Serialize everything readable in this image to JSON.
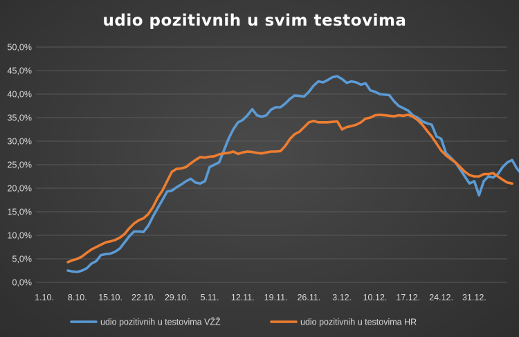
{
  "chart_data": {
    "type": "line",
    "title": "udio pozitivnih u svim testovima",
    "xlabel": "",
    "ylabel": "",
    "ylim": [
      0,
      50
    ],
    "y_ticks": [
      "0,0%",
      "5,0%",
      "10,0%",
      "15,0%",
      "20,0%",
      "25,0%",
      "30,0%",
      "35,0%",
      "40,0%",
      "45,0%",
      "50,0%"
    ],
    "x_ticks": [
      "1.10.",
      "8.10.",
      "15.10.",
      "22.10.",
      "29.10.",
      "5.11.",
      "12.11.",
      "19.11.",
      "26.11.",
      "3.12.",
      "10.12.",
      "17.12.",
      "24.12.",
      "31.12."
    ],
    "grid": true,
    "legend_position": "bottom",
    "series": [
      {
        "name": "udio pozitivnih u testovima VŽŽ",
        "color": "#5b9bd5",
        "x_start_day": 5,
        "values": [
          2.5,
          2.3,
          2.2,
          2.5,
          3.0,
          4.0,
          4.5,
          5.8,
          6.0,
          6.1,
          6.5,
          7.2,
          8.5,
          9.8,
          10.8,
          10.8,
          10.7,
          12.0,
          14.0,
          15.8,
          17.5,
          19.3,
          19.5,
          20.2,
          20.8,
          21.5,
          22.0,
          21.2,
          21.0,
          21.5,
          24.5,
          25.0,
          25.5,
          28.0,
          30.5,
          32.5,
          34.0,
          34.5,
          35.5,
          36.8,
          35.5,
          35.2,
          35.5,
          36.7,
          37.2,
          37.2,
          38.0,
          39.0,
          39.7,
          39.6,
          39.5,
          40.5,
          41.8,
          42.7,
          42.5,
          43.0,
          43.6,
          43.8,
          43.2,
          42.4,
          42.7,
          42.5,
          42.0,
          42.3,
          40.8,
          40.5,
          40.0,
          39.9,
          39.8,
          38.5,
          37.5,
          37.0,
          36.5,
          35.5,
          35.0,
          34.2,
          33.8,
          33.5,
          31.0,
          30.5,
          27.5,
          26.5,
          25.5,
          24.0,
          22.5,
          21.0,
          21.5,
          18.5,
          21.5,
          22.5,
          22.3,
          23.0,
          24.5,
          25.5,
          26.0,
          24.2,
          23.0
        ]
      },
      {
        "name": "udio pozitivnih u testovima HR",
        "color": "#ed7d31",
        "x_start_day": 5,
        "values": [
          4.3,
          4.7,
          5.0,
          5.5,
          6.3,
          7.0,
          7.5,
          8.0,
          8.5,
          8.7,
          9.0,
          9.5,
          10.3,
          11.5,
          12.5,
          13.2,
          13.6,
          14.5,
          16.0,
          18.0,
          19.5,
          21.5,
          23.5,
          24.1,
          24.2,
          24.5,
          25.3,
          26.0,
          26.6,
          26.5,
          26.7,
          26.8,
          27.2,
          27.4,
          27.5,
          27.8,
          27.3,
          27.6,
          27.8,
          27.7,
          27.5,
          27.4,
          27.6,
          27.8,
          27.8,
          27.9,
          29.0,
          30.5,
          31.5,
          32.0,
          33.0,
          34.0,
          34.3,
          34.0,
          34.0,
          34.0,
          34.1,
          34.2,
          32.5,
          33.0,
          33.2,
          33.5,
          34.0,
          34.8,
          35.0,
          35.5,
          35.6,
          35.5,
          35.4,
          35.3,
          35.5,
          35.4,
          35.6,
          35.2,
          34.5,
          33.5,
          32.2,
          31.0,
          29.5,
          28.0,
          27.0,
          26.2,
          25.5,
          24.5,
          23.5,
          22.8,
          22.5,
          22.5,
          23.0,
          23.0,
          23.2,
          22.5,
          21.8,
          21.2,
          21.0
        ]
      }
    ]
  }
}
